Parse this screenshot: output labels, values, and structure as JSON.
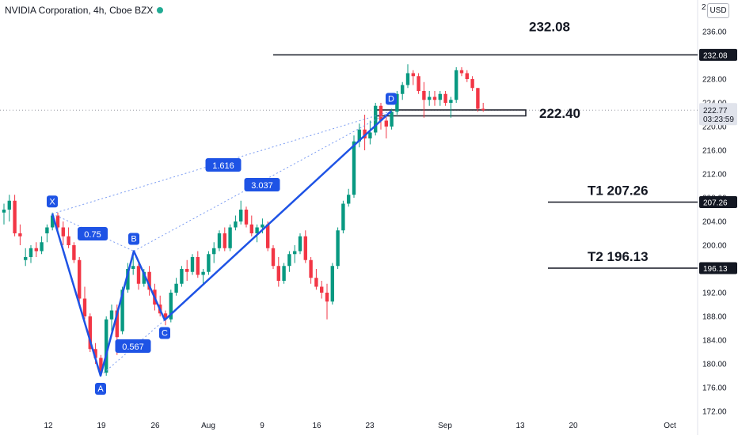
{
  "header": {
    "title": "NVIDIA Corporation, 4h, Cboe BZX",
    "currency": "USD",
    "price_axis_top_cutoff": "2"
  },
  "chart_data": {
    "type": "candlestick",
    "title": "NVIDIA Corporation, 4h, Cboe BZX",
    "currency": "USD",
    "y_axis": {
      "ticks": [
        172,
        176,
        180,
        184,
        188,
        192,
        196,
        200,
        204,
        208,
        212,
        216,
        220,
        224,
        228,
        232,
        236
      ],
      "tick_labels": [
        "172.00",
        "176.00",
        "180.00",
        "184.00",
        "188.00",
        "192.00",
        "196.00",
        "200.00",
        "204.00",
        "208.00",
        "212.00",
        "216.00",
        "220.00",
        "224.00",
        "228.00",
        "232.00",
        "236.00"
      ],
      "range": [
        171.5,
        238.5
      ]
    },
    "x_axis": {
      "tick_labels": [
        "12",
        "19",
        "26",
        "Aug",
        "9",
        "16",
        "23",
        "Sep",
        "13",
        "20",
        "Oct"
      ]
    },
    "price_tags": [
      {
        "label": "232.08",
        "value": 232.08,
        "style": "dark"
      },
      {
        "label": "222.77",
        "value": 222.77,
        "style": "gray",
        "sub_label": "03:23:59"
      },
      {
        "label": "207.26",
        "value": 207.26,
        "style": "dark"
      },
      {
        "label": "196.13",
        "value": 196.13,
        "style": "dark"
      }
    ],
    "levels": [
      {
        "label": "232.08",
        "value": 232.08
      },
      {
        "label": "T1   207.26",
        "value": 207.26
      },
      {
        "label": "T2   196.13",
        "value": 196.13
      }
    ],
    "zone": {
      "label": "222.40",
      "low": 221.8,
      "high": 222.8
    },
    "pattern_points": [
      {
        "label": "X",
        "value": 205.3
      },
      {
        "label": "A",
        "value": 178.0
      },
      {
        "label": "B",
        "value": 199.0
      },
      {
        "label": "C",
        "value": 187.4
      },
      {
        "label": "D",
        "value": 222.6
      }
    ],
    "ratios": [
      "0.75",
      "0.567",
      "1.616",
      "3.037"
    ],
    "candles": [
      [
        205.5,
        207,
        203.5,
        206
      ],
      [
        206,
        208.5,
        204,
        207.5
      ],
      [
        207.5,
        208.5,
        201.5,
        202
      ],
      [
        202,
        203.5,
        200,
        201.5
      ],
      [
        197.5,
        199.5,
        196.5,
        198
      ],
      [
        198,
        200,
        197,
        199.5
      ],
      [
        199.5,
        200.5,
        198,
        199
      ],
      [
        199,
        201.5,
        198.5,
        200.5
      ],
      [
        202,
        203.5,
        200.5,
        203
      ],
      [
        203,
        205.5,
        202.5,
        205
      ],
      [
        205,
        205.5,
        202,
        203
      ],
      [
        203,
        204,
        200,
        201.5
      ],
      [
        201.5,
        203,
        199.5,
        200
      ],
      [
        200,
        200.5,
        197,
        197.5
      ],
      [
        197.5,
        198,
        190,
        191
      ],
      [
        191,
        193,
        187.5,
        188
      ],
      [
        188,
        188.5,
        182,
        182.5
      ],
      [
        182.5,
        183.5,
        180,
        181
      ],
      [
        181,
        181.5,
        178,
        178.5
      ],
      [
        178.5,
        188,
        178,
        187.5
      ],
      [
        187.5,
        190,
        185.5,
        189
      ],
      [
        189,
        190,
        181.5,
        184.5
      ],
      [
        185.5,
        193,
        185,
        192.5
      ],
      [
        192.5,
        197,
        192,
        196
      ],
      [
        196,
        199,
        195,
        196.5
      ],
      [
        196.5,
        197,
        192.5,
        193.5
      ],
      [
        193.5,
        196,
        193,
        195.5
      ],
      [
        195.5,
        196.5,
        191.5,
        192.5
      ],
      [
        192.5,
        193.5,
        189,
        190
      ],
      [
        190,
        191.5,
        188,
        188.5
      ],
      [
        188.5,
        189,
        186.5,
        187.5
      ],
      [
        187.5,
        192.5,
        187,
        192
      ],
      [
        192,
        194.5,
        191.5,
        193.5
      ],
      [
        193.5,
        196.5,
        193,
        196
      ],
      [
        196,
        197.5,
        194,
        195.5
      ],
      [
        195.5,
        198.5,
        195,
        198
      ],
      [
        198,
        199,
        194.5,
        195
      ],
      [
        195,
        196,
        193.5,
        195.5
      ],
      [
        195.5,
        199,
        195,
        198.5
      ],
      [
        198.5,
        200.5,
        197,
        199.5
      ],
      [
        199.5,
        202.5,
        199,
        202
      ],
      [
        202,
        203,
        199,
        199.5
      ],
      [
        199.5,
        203.5,
        199,
        203
      ],
      [
        203,
        205,
        202.5,
        204
      ],
      [
        204,
        207.5,
        203.5,
        206
      ],
      [
        206,
        206.5,
        203,
        203.5
      ],
      [
        203.5,
        205,
        201.5,
        202
      ],
      [
        202,
        203.5,
        200.5,
        203
      ],
      [
        203,
        204.5,
        202,
        203.5
      ],
      [
        203.5,
        204,
        199,
        199.5
      ],
      [
        199.5,
        200,
        196,
        196.5
      ],
      [
        196.5,
        198,
        193,
        194
      ],
      [
        194,
        197,
        193.5,
        196.5
      ],
      [
        196.5,
        199,
        195.5,
        198.5
      ],
      [
        198.5,
        200,
        197,
        199
      ],
      [
        199,
        202,
        198.5,
        201.5
      ],
      [
        201.5,
        202.5,
        197,
        197.5
      ],
      [
        197.5,
        198,
        193.5,
        194.5
      ],
      [
        194.5,
        196,
        192.5,
        193
      ],
      [
        193,
        194,
        191,
        192
      ],
      [
        192,
        193.5,
        187.5,
        190.5
      ],
      [
        190.5,
        197,
        190,
        196.5
      ],
      [
        196.5,
        203,
        196,
        202.5
      ],
      [
        202.5,
        207.5,
        202,
        207
      ],
      [
        207,
        209.5,
        206.5,
        208.5
      ],
      [
        208.5,
        218.5,
        208,
        217.5
      ],
      [
        217.5,
        220.5,
        216.5,
        219.5
      ],
      [
        219.5,
        222,
        216,
        218
      ],
      [
        218,
        221,
        217,
        219
      ],
      [
        219,
        224,
        218.5,
        223.5
      ],
      [
        223.5,
        224,
        219.5,
        221
      ],
      [
        221,
        222,
        218,
        220
      ],
      [
        220,
        223,
        219.5,
        222.5
      ],
      [
        222.5,
        226,
        222,
        225.5
      ],
      [
        225.5,
        227.5,
        224.5,
        227
      ],
      [
        227,
        230.5,
        226.5,
        229
      ],
      [
        229,
        229.5,
        227,
        228.5
      ],
      [
        228.5,
        229,
        225.5,
        226
      ],
      [
        226,
        227.5,
        221.5,
        224.5
      ],
      [
        224.5,
        226,
        223.5,
        225
      ],
      [
        225,
        226,
        223.5,
        224.5
      ],
      [
        224.5,
        226,
        223.5,
        225.5
      ],
      [
        225.5,
        226,
        223.5,
        224
      ],
      [
        224,
        225,
        221.5,
        224.5
      ],
      [
        224.5,
        230,
        224,
        229.5
      ],
      [
        229.5,
        230,
        228.5,
        229
      ],
      [
        229,
        229.5,
        227.5,
        228
      ],
      [
        228,
        228.5,
        226,
        226.5
      ],
      [
        226.5,
        226.5,
        222.5,
        223
      ],
      [
        223,
        224,
        222.5,
        222.77
      ]
    ]
  }
}
